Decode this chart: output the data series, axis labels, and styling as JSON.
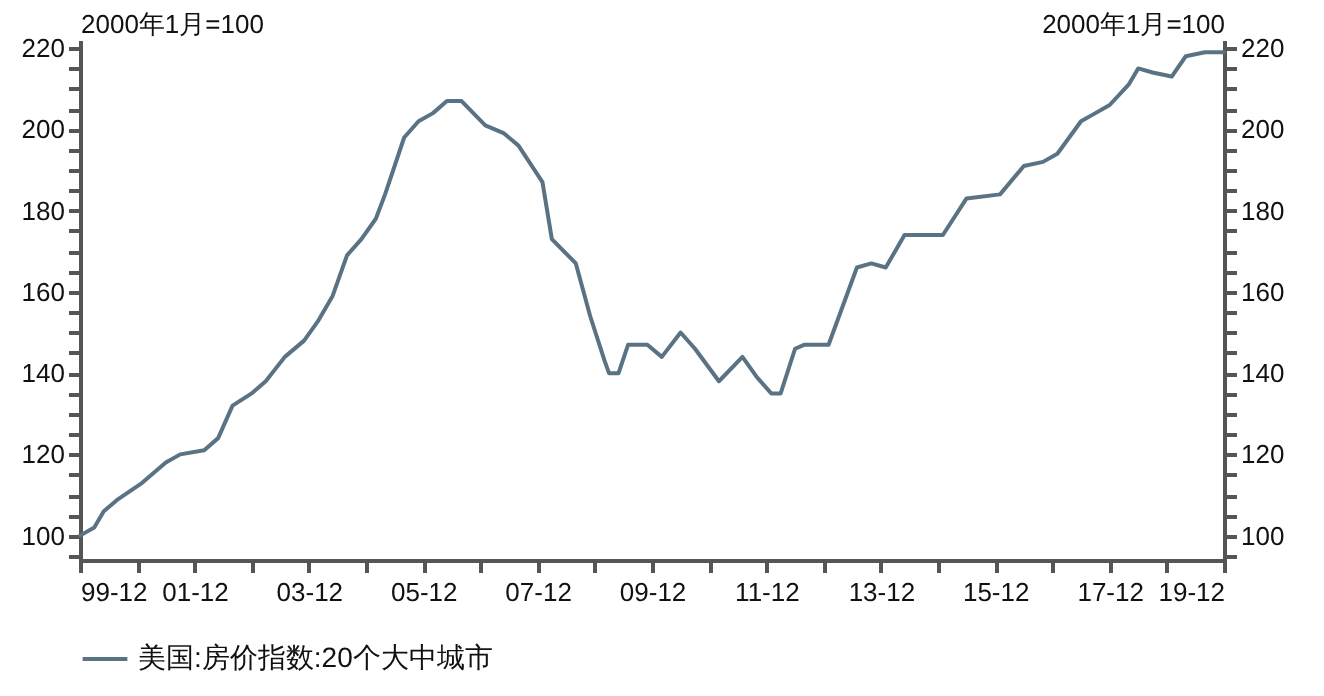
{
  "chart_data": {
    "type": "line",
    "ylabel": "2000年1月=100",
    "y2label": "2000年1月=100",
    "x": [
      "1999-12",
      "2000-03",
      "2000-05",
      "2000-08",
      "2001-01",
      "2001-06",
      "2001-09",
      "2002-02",
      "2002-05",
      "2002-08",
      "2002-12",
      "2003-03",
      "2003-07",
      "2003-11",
      "2004-02",
      "2004-05",
      "2004-08",
      "2004-11",
      "2005-02",
      "2005-04",
      "2005-08",
      "2005-11",
      "2006-02",
      "2006-05",
      "2006-08",
      "2007-01",
      "2007-05",
      "2007-08",
      "2008-01",
      "2008-03",
      "2008-08",
      "2008-11",
      "2009-02",
      "2009-03",
      "2009-05",
      "2009-07",
      "2009-11",
      "2010-02",
      "2010-06",
      "2010-09",
      "2011-02",
      "2011-07",
      "2011-10",
      "2012-01",
      "2012-03",
      "2012-06",
      "2012-08",
      "2013-01",
      "2013-07",
      "2013-10",
      "2014-01",
      "2014-05",
      "2014-08",
      "2015-01",
      "2015-06",
      "2016-01",
      "2016-06",
      "2016-10",
      "2017-01",
      "2017-06",
      "2017-09",
      "2017-12",
      "2018-04",
      "2018-06",
      "2018-09",
      "2019-01",
      "2019-04",
      "2019-08",
      "2019-12"
    ],
    "series": [
      {
        "name": "美国:房价指数:20个大中城市",
        "color": "#5a7384",
        "values": [
          100,
          102,
          106,
          109,
          113,
          118,
          120,
          121,
          124,
          132,
          135,
          138,
          144,
          148,
          153,
          159,
          169,
          173,
          178,
          184,
          198,
          202,
          204,
          207,
          207,
          201,
          199,
          196,
          187,
          173,
          167,
          154,
          143,
          140,
          140,
          147,
          147,
          144,
          150,
          146,
          138,
          144,
          139,
          135,
          135,
          146,
          147,
          147,
          166,
          167,
          166,
          174,
          174,
          174,
          183,
          184,
          191,
          192,
          194,
          202,
          204,
          206,
          211,
          215,
          214,
          213,
          218,
          219,
          219
        ]
      }
    ],
    "xlim": [
      "1999-12",
      "2019-12"
    ],
    "xticks": [
      {
        "value": "1999-12",
        "label": "99-12"
      },
      {
        "value": "2000-12",
        "label": null
      },
      {
        "value": "2001-12",
        "label": "01-12"
      },
      {
        "value": "2002-12",
        "label": null
      },
      {
        "value": "2003-12",
        "label": "03-12"
      },
      {
        "value": "2004-12",
        "label": null
      },
      {
        "value": "2005-12",
        "label": "05-12"
      },
      {
        "value": "2006-12",
        "label": null
      },
      {
        "value": "2007-12",
        "label": "07-12"
      },
      {
        "value": "2008-12",
        "label": null
      },
      {
        "value": "2009-12",
        "label": "09-12"
      },
      {
        "value": "2010-12",
        "label": null
      },
      {
        "value": "2011-12",
        "label": "11-12"
      },
      {
        "value": "2012-12",
        "label": null
      },
      {
        "value": "2013-12",
        "label": "13-12"
      },
      {
        "value": "2014-12",
        "label": null
      },
      {
        "value": "2015-12",
        "label": "15-12"
      },
      {
        "value": "2016-12",
        "label": null
      },
      {
        "value": "2017-12",
        "label": "17-12"
      },
      {
        "value": "2018-12",
        "label": null
      },
      {
        "value": "2019-12",
        "label": "19-12"
      }
    ],
    "ylim": [
      94,
      222
    ],
    "yticks": [
      {
        "value": 95,
        "label": null
      },
      100,
      {
        "value": 105,
        "label": null
      },
      {
        "value": 110,
        "label": null
      },
      {
        "value": 115,
        "label": null
      },
      120,
      {
        "value": 125,
        "label": null
      },
      {
        "value": 130,
        "label": null
      },
      {
        "value": 135,
        "label": null
      },
      140,
      {
        "value": 145,
        "label": null
      },
      {
        "value": 150,
        "label": null
      },
      {
        "value": 155,
        "label": null
      },
      160,
      {
        "value": 165,
        "label": null
      },
      {
        "value": 170,
        "label": null
      },
      {
        "value": 175,
        "label": null
      },
      180,
      {
        "value": 185,
        "label": null
      },
      {
        "value": 190,
        "label": null
      },
      {
        "value": 195,
        "label": null
      },
      200,
      {
        "value": 205,
        "label": null
      },
      {
        "value": 210,
        "label": null
      },
      {
        "value": 215,
        "label": null
      },
      220
    ],
    "y2lim": [
      94,
      222
    ],
    "y2ticks": [
      {
        "value": 95,
        "label": null
      },
      100,
      {
        "value": 105,
        "label": null
      },
      {
        "value": 110,
        "label": null
      },
      {
        "value": 115,
        "label": null
      },
      120,
      {
        "value": 125,
        "label": null
      },
      {
        "value": 130,
        "label": null
      },
      {
        "value": 135,
        "label": null
      },
      140,
      {
        "value": 145,
        "label": null
      },
      {
        "value": 150,
        "label": null
      },
      {
        "value": 155,
        "label": null
      },
      160,
      {
        "value": 165,
        "label": null
      },
      {
        "value": 170,
        "label": null
      },
      {
        "value": 175,
        "label": null
      },
      180,
      {
        "value": 185,
        "label": null
      },
      {
        "value": 190,
        "label": null
      },
      {
        "value": 195,
        "label": null
      },
      200,
      {
        "value": 205,
        "label": null
      },
      {
        "value": 210,
        "label": null
      },
      {
        "value": 215,
        "label": null
      },
      220
    ],
    "grid": false,
    "legend": "bottom"
  }
}
